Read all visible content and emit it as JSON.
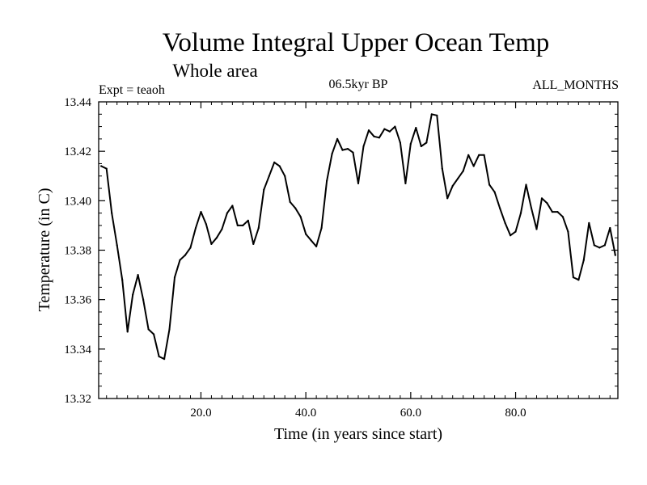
{
  "header": {
    "title": "Volume Integral Upper Ocean Temp",
    "subtitle": "Whole area",
    "expt": "Expt = teaoh",
    "period": "06.5kyr BP",
    "months": "ALL_MONTHS"
  },
  "chart_data": {
    "type": "line",
    "title": "Volume Integral Upper Ocean Temp",
    "subtitle": "Whole area",
    "xlabel": "Time (in years since start)",
    "ylabel": "Temperature (in C)",
    "xlim": [
      0.5,
      99.5
    ],
    "ylim": [
      13.32,
      13.44
    ],
    "x_ticks": [
      20,
      40,
      60,
      80
    ],
    "x_tick_labels": [
      "20.0",
      "40.0",
      "60.0",
      "80.0"
    ],
    "y_ticks": [
      13.32,
      13.34,
      13.36,
      13.38,
      13.4,
      13.42,
      13.44
    ],
    "y_tick_labels": [
      "13.32",
      "13.34",
      "13.36",
      "13.38",
      "13.40",
      "13.42",
      "13.44"
    ],
    "grid": false,
    "series": [
      {
        "name": "teaoh",
        "x": [
          1,
          2,
          3,
          4,
          5,
          6,
          7,
          8,
          9,
          10,
          11,
          12,
          13,
          14,
          15,
          16,
          17,
          18,
          19,
          20,
          21,
          22,
          23,
          24,
          25,
          26,
          27,
          28,
          29,
          30,
          31,
          32,
          33,
          34,
          35,
          36,
          37,
          38,
          39,
          40,
          41,
          42,
          43,
          44,
          45,
          46,
          47,
          48,
          49,
          50,
          51,
          52,
          53,
          54,
          55,
          56,
          57,
          58,
          59,
          60,
          61,
          62,
          63,
          64,
          65,
          66,
          67,
          68,
          69,
          70,
          71,
          72,
          73,
          74,
          75,
          76,
          77,
          78,
          79,
          80,
          81,
          82,
          83,
          84,
          85,
          86,
          87,
          88,
          89,
          90,
          91,
          92,
          93,
          94,
          95,
          96,
          97,
          98,
          99
        ],
        "values": [
          13.414,
          13.413,
          13.395,
          13.382,
          13.368,
          13.347,
          13.362,
          13.37,
          13.36,
          13.348,
          13.346,
          13.337,
          13.336,
          13.348,
          13.369,
          13.376,
          13.378,
          13.381,
          13.389,
          13.3955,
          13.3905,
          13.3825,
          13.385,
          13.3885,
          13.395,
          13.398,
          13.39,
          13.39,
          13.392,
          13.3825,
          13.389,
          13.4045,
          13.41,
          13.4155,
          13.414,
          13.41,
          13.3995,
          13.397,
          13.3935,
          13.3865,
          13.384,
          13.3815,
          13.389,
          13.408,
          13.419,
          13.425,
          13.4205,
          13.421,
          13.4195,
          13.407,
          13.422,
          13.4285,
          13.426,
          13.4255,
          13.429,
          13.428,
          13.43,
          13.4235,
          13.407,
          13.423,
          13.4295,
          13.422,
          13.4235,
          13.435,
          13.4345,
          13.413,
          13.401,
          13.406,
          13.409,
          13.412,
          13.4185,
          13.414,
          13.4185,
          13.4185,
          13.4065,
          13.4035,
          13.397,
          13.391,
          13.386,
          13.3875,
          13.395,
          13.4065,
          13.397,
          13.3885,
          13.401,
          13.399,
          13.3955,
          13.3955,
          13.3935,
          13.3875,
          13.369,
          13.368,
          13.376,
          13.391,
          13.382,
          13.381,
          13.382,
          13.389,
          13.378
        ]
      }
    ]
  }
}
